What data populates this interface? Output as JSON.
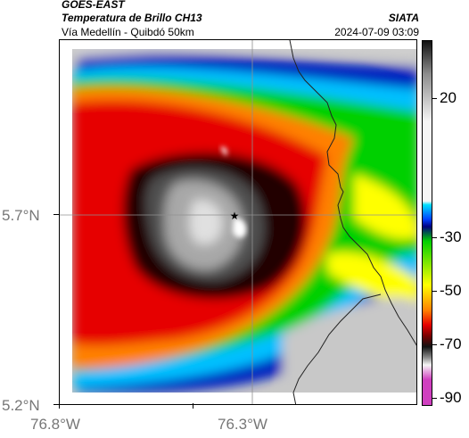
{
  "header": {
    "satellite": "GOES-EAST",
    "product": "Temperatura de Brillo CH13",
    "region": "Vía Medellín - Quibdó 50km",
    "organization": "SIATA",
    "timestamp": "2024-07-09 03:09"
  },
  "map": {
    "x_ticks": [
      "76.8°W",
      "76.3°W"
    ],
    "y_ticks": [
      "5.7°N",
      "5.2°N"
    ],
    "marker_icon": "star-icon"
  },
  "colorbar": {
    "labels": [
      "20",
      "-30",
      "-50",
      "-70",
      "-90"
    ],
    "colors": {
      "white": "#f5f5f5",
      "gray": "#8c8c8c",
      "black": "#111111",
      "dark_red": "#7a0000",
      "red": "#e60000",
      "orange": "#ff8000",
      "yellow": "#ffff00",
      "green": "#00d000",
      "cyan": "#00e0ff",
      "blue": "#0040ff",
      "navy": "#000080",
      "magenta": "#d040c0"
    }
  }
}
